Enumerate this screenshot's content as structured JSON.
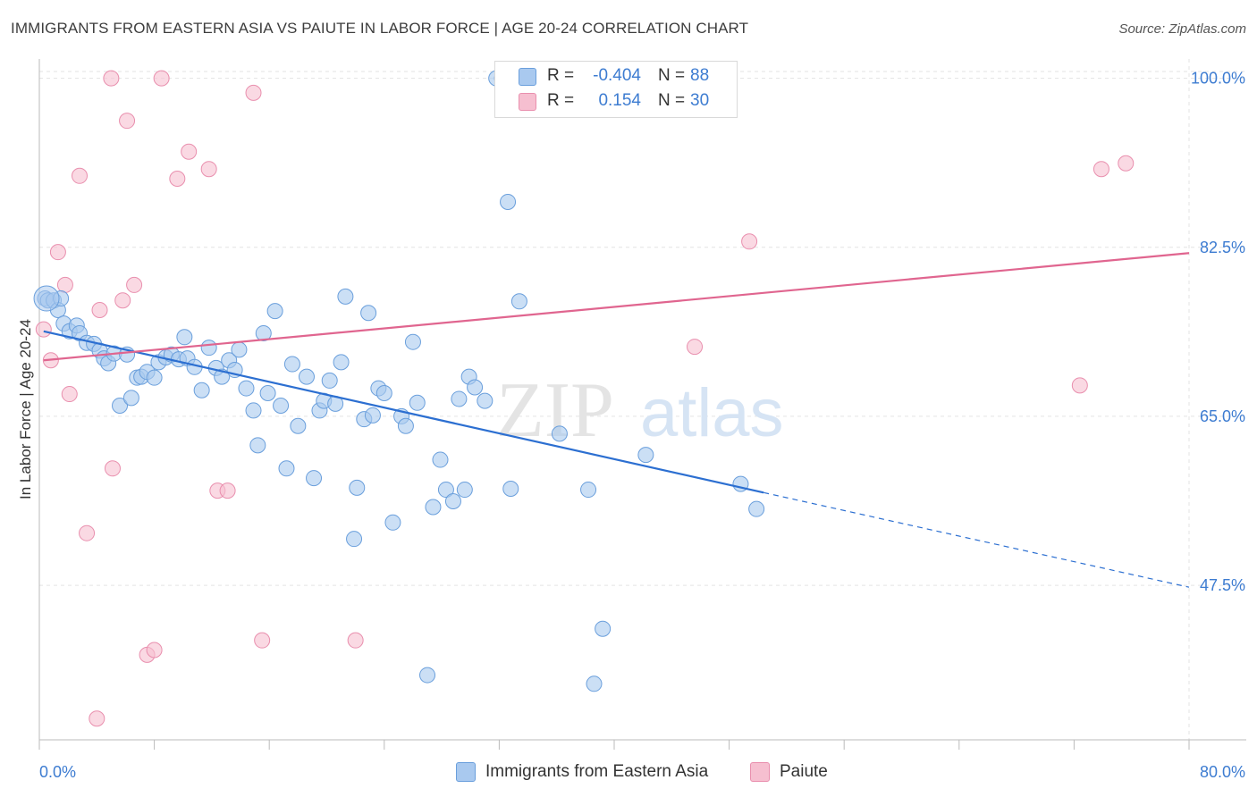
{
  "title": "IMMIGRANTS FROM EASTERN ASIA VS PAIUTE IN LABOR FORCE | AGE 20-24 CORRELATION CHART",
  "source": "Source: ZipAtlas.com",
  "watermark": {
    "zip": "ZIP",
    "atlas": "atlas"
  },
  "colors": {
    "blue_fill": "#a9c9ef",
    "blue_stroke": "#6a9fdc",
    "blue_line": "#2c6fd1",
    "pink_fill": "#f6bfd0",
    "pink_stroke": "#e98fae",
    "pink_line": "#e0658f",
    "tick_label": "#3d7cd1",
    "grid": "#e3e3e3"
  },
  "legend": {
    "rows": [
      {
        "r_label": "R =",
        "r_value": "-0.404",
        "n_label": "N =",
        "n_value": "88"
      },
      {
        "r_label": "R =",
        "r_value": "0.154",
        "n_label": "N =",
        "n_value": "30"
      }
    ]
  },
  "bottom_legend": [
    {
      "label": "Immigrants from Eastern Asia"
    },
    {
      "label": "Paiute"
    }
  ],
  "chart_data": {
    "type": "scatter",
    "title": "IMMIGRANTS FROM EASTERN ASIA VS PAIUTE IN LABOR FORCE | AGE 20-24 CORRELATION CHART",
    "xlabel": "",
    "ylabel": "In Labor Force | Age 20-24",
    "xlim": [
      0,
      80
    ],
    "ylim": [
      31.5,
      102
    ],
    "x_tick_labels": [
      "0.0%",
      "80.0%"
    ],
    "y_ticks": [
      47.5,
      65.0,
      82.5,
      100.0
    ],
    "y_tick_labels": [
      "47.5%",
      "65.0%",
      "82.5%",
      "100.0%"
    ],
    "grid": true,
    "legend_position": "top-center",
    "series": [
      {
        "name": "Immigrants from Eastern Asia",
        "color": "#a9c9ef",
        "trend": {
          "x": [
            0.3,
            50.4
          ],
          "y": [
            73.8,
            57.1
          ],
          "dashed_to": [
            80.0,
            47.3
          ]
        },
        "points": [
          [
            0.4,
            77.2
          ],
          [
            0.6,
            77.0
          ],
          [
            1.0,
            77.0
          ],
          [
            1.3,
            76.0
          ],
          [
            1.5,
            77.2
          ],
          [
            1.7,
            74.6
          ],
          [
            2.1,
            73.8
          ],
          [
            2.6,
            74.4
          ],
          [
            2.8,
            73.6
          ],
          [
            3.3,
            72.6
          ],
          [
            3.8,
            72.5
          ],
          [
            4.2,
            71.8
          ],
          [
            4.5,
            71.0
          ],
          [
            4.8,
            70.5
          ],
          [
            5.2,
            71.5
          ],
          [
            5.6,
            66.1
          ],
          [
            6.1,
            71.4
          ],
          [
            6.4,
            66.9
          ],
          [
            6.8,
            69.0
          ],
          [
            7.1,
            69.1
          ],
          [
            7.5,
            69.6
          ],
          [
            8.0,
            69.0
          ],
          [
            8.3,
            70.6
          ],
          [
            8.8,
            71.1
          ],
          [
            9.2,
            71.4
          ],
          [
            9.7,
            70.9
          ],
          [
            10.1,
            73.2
          ],
          [
            10.3,
            71.0
          ],
          [
            10.8,
            70.1
          ],
          [
            11.3,
            67.7
          ],
          [
            11.8,
            72.1
          ],
          [
            12.3,
            70.0
          ],
          [
            12.7,
            69.1
          ],
          [
            13.2,
            70.8
          ],
          [
            13.6,
            69.8
          ],
          [
            13.9,
            71.9
          ],
          [
            14.4,
            67.9
          ],
          [
            14.9,
            65.6
          ],
          [
            15.2,
            62.0
          ],
          [
            15.6,
            73.6
          ],
          [
            15.9,
            67.4
          ],
          [
            16.4,
            75.9
          ],
          [
            16.8,
            66.1
          ],
          [
            17.2,
            59.6
          ],
          [
            17.6,
            70.4
          ],
          [
            18.0,
            64.0
          ],
          [
            18.6,
            69.1
          ],
          [
            19.1,
            58.6
          ],
          [
            19.5,
            65.6
          ],
          [
            19.8,
            66.6
          ],
          [
            20.2,
            68.7
          ],
          [
            20.6,
            66.3
          ],
          [
            21.0,
            70.6
          ],
          [
            21.3,
            77.4
          ],
          [
            21.9,
            52.3
          ],
          [
            22.1,
            57.6
          ],
          [
            22.6,
            64.7
          ],
          [
            22.9,
            75.7
          ],
          [
            23.2,
            65.1
          ],
          [
            23.6,
            67.9
          ],
          [
            24.0,
            67.4
          ],
          [
            24.6,
            54.0
          ],
          [
            25.2,
            65.0
          ],
          [
            25.5,
            64.0
          ],
          [
            26.0,
            72.7
          ],
          [
            26.3,
            66.4
          ],
          [
            27.4,
            55.6
          ],
          [
            27.9,
            60.5
          ],
          [
            28.3,
            57.4
          ],
          [
            28.8,
            56.2
          ],
          [
            29.2,
            66.8
          ],
          [
            29.6,
            57.4
          ],
          [
            29.9,
            69.1
          ],
          [
            30.3,
            68.0
          ],
          [
            31.0,
            66.6
          ],
          [
            31.8,
            100.0
          ],
          [
            32.2,
            100.0
          ],
          [
            32.6,
            87.2
          ],
          [
            32.8,
            57.5
          ],
          [
            33.4,
            76.9
          ],
          [
            36.2,
            63.2
          ],
          [
            38.2,
            57.4
          ],
          [
            38.6,
            37.3
          ],
          [
            39.2,
            43.0
          ],
          [
            42.2,
            61.0
          ],
          [
            48.8,
            58.0
          ],
          [
            49.9,
            55.4
          ],
          [
            27.0,
            38.2
          ]
        ]
      },
      {
        "name": "Paiute",
        "color": "#f6bfd0",
        "trend": {
          "x": [
            0.3,
            80.0
          ],
          "y": [
            70.8,
            81.9
          ]
        },
        "points": [
          [
            0.3,
            74.0
          ],
          [
            0.8,
            70.8
          ],
          [
            1.3,
            82.0
          ],
          [
            1.8,
            78.6
          ],
          [
            2.1,
            67.3
          ],
          [
            2.8,
            89.9
          ],
          [
            3.3,
            52.9
          ],
          [
            4.2,
            76.0
          ],
          [
            5.0,
            100.0
          ],
          [
            5.1,
            59.6
          ],
          [
            5.8,
            77.0
          ],
          [
            6.1,
            95.6
          ],
          [
            6.6,
            78.6
          ],
          [
            7.5,
            40.3
          ],
          [
            8.0,
            40.8
          ],
          [
            8.5,
            100.0
          ],
          [
            9.6,
            89.6
          ],
          [
            10.4,
            92.4
          ],
          [
            11.8,
            90.6
          ],
          [
            12.4,
            57.3
          ],
          [
            13.1,
            57.3
          ],
          [
            14.9,
            98.5
          ],
          [
            15.5,
            41.8
          ],
          [
            22.0,
            41.8
          ],
          [
            4.0,
            33.7
          ],
          [
            45.6,
            72.2
          ],
          [
            49.4,
            83.1
          ],
          [
            72.4,
            68.2
          ],
          [
            73.9,
            90.6
          ],
          [
            75.6,
            91.2
          ]
        ]
      }
    ]
  }
}
